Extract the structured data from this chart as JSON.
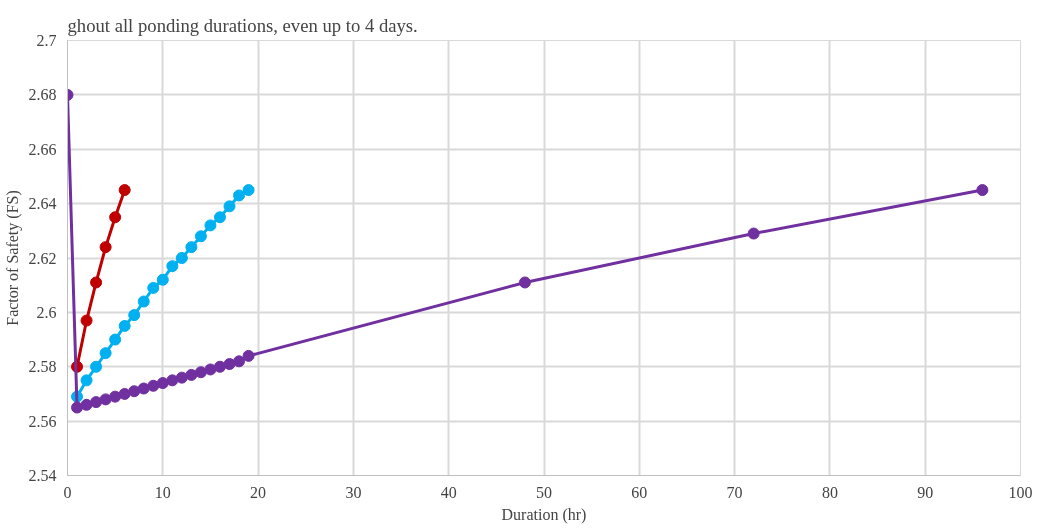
{
  "chart_data": {
    "type": "line",
    "xlabel": "Duration (hr)",
    "ylabel": "Factor of Safety (FS)",
    "annotations": [
      "ghout all ponding durations, even up to 4 days."
    ],
    "xlim": [
      0,
      100
    ],
    "xticks": [
      0,
      10,
      20,
      30,
      40,
      50,
      60,
      70,
      80,
      90,
      100
    ],
    "ylim": [
      2.54,
      2.7
    ],
    "yticks": [
      2.54,
      2.56,
      2.58,
      2.6,
      2.62,
      2.64,
      2.66,
      2.68,
      2.7
    ],
    "grid": true,
    "marker": "circle",
    "line_style": "solid",
    "series": [
      {
        "color": "#c00000",
        "x": [
          1,
          2,
          3,
          4,
          5,
          6
        ],
        "values": [
          2.58,
          2.597,
          2.611,
          2.624,
          2.635,
          2.645
        ]
      },
      {
        "color": "#00b0f0",
        "x": [
          1,
          2,
          3,
          4,
          5,
          6,
          7,
          8,
          9,
          10,
          11,
          12,
          13,
          14,
          15,
          16,
          17,
          18,
          19
        ],
        "values": [
          2.569,
          2.575,
          2.58,
          2.585,
          2.59,
          2.595,
          2.599,
          2.604,
          2.609,
          2.612,
          2.617,
          2.62,
          2.624,
          2.628,
          2.632,
          2.635,
          2.639,
          2.643,
          2.645
        ]
      },
      {
        "color": "#7030a0",
        "x": [
          0,
          1,
          2,
          3,
          4,
          5,
          6,
          7,
          8,
          9,
          10,
          11,
          12,
          13,
          14,
          15,
          16,
          17,
          18,
          19,
          48,
          72,
          96
        ],
        "values": [
          2.68,
          2.565,
          2.566,
          2.567,
          2.568,
          2.569,
          2.57,
          2.571,
          2.572,
          2.573,
          2.574,
          2.575,
          2.576,
          2.577,
          2.578,
          2.579,
          2.58,
          2.581,
          2.582,
          2.584,
          2.611,
          2.629,
          2.645
        ]
      }
    ]
  }
}
